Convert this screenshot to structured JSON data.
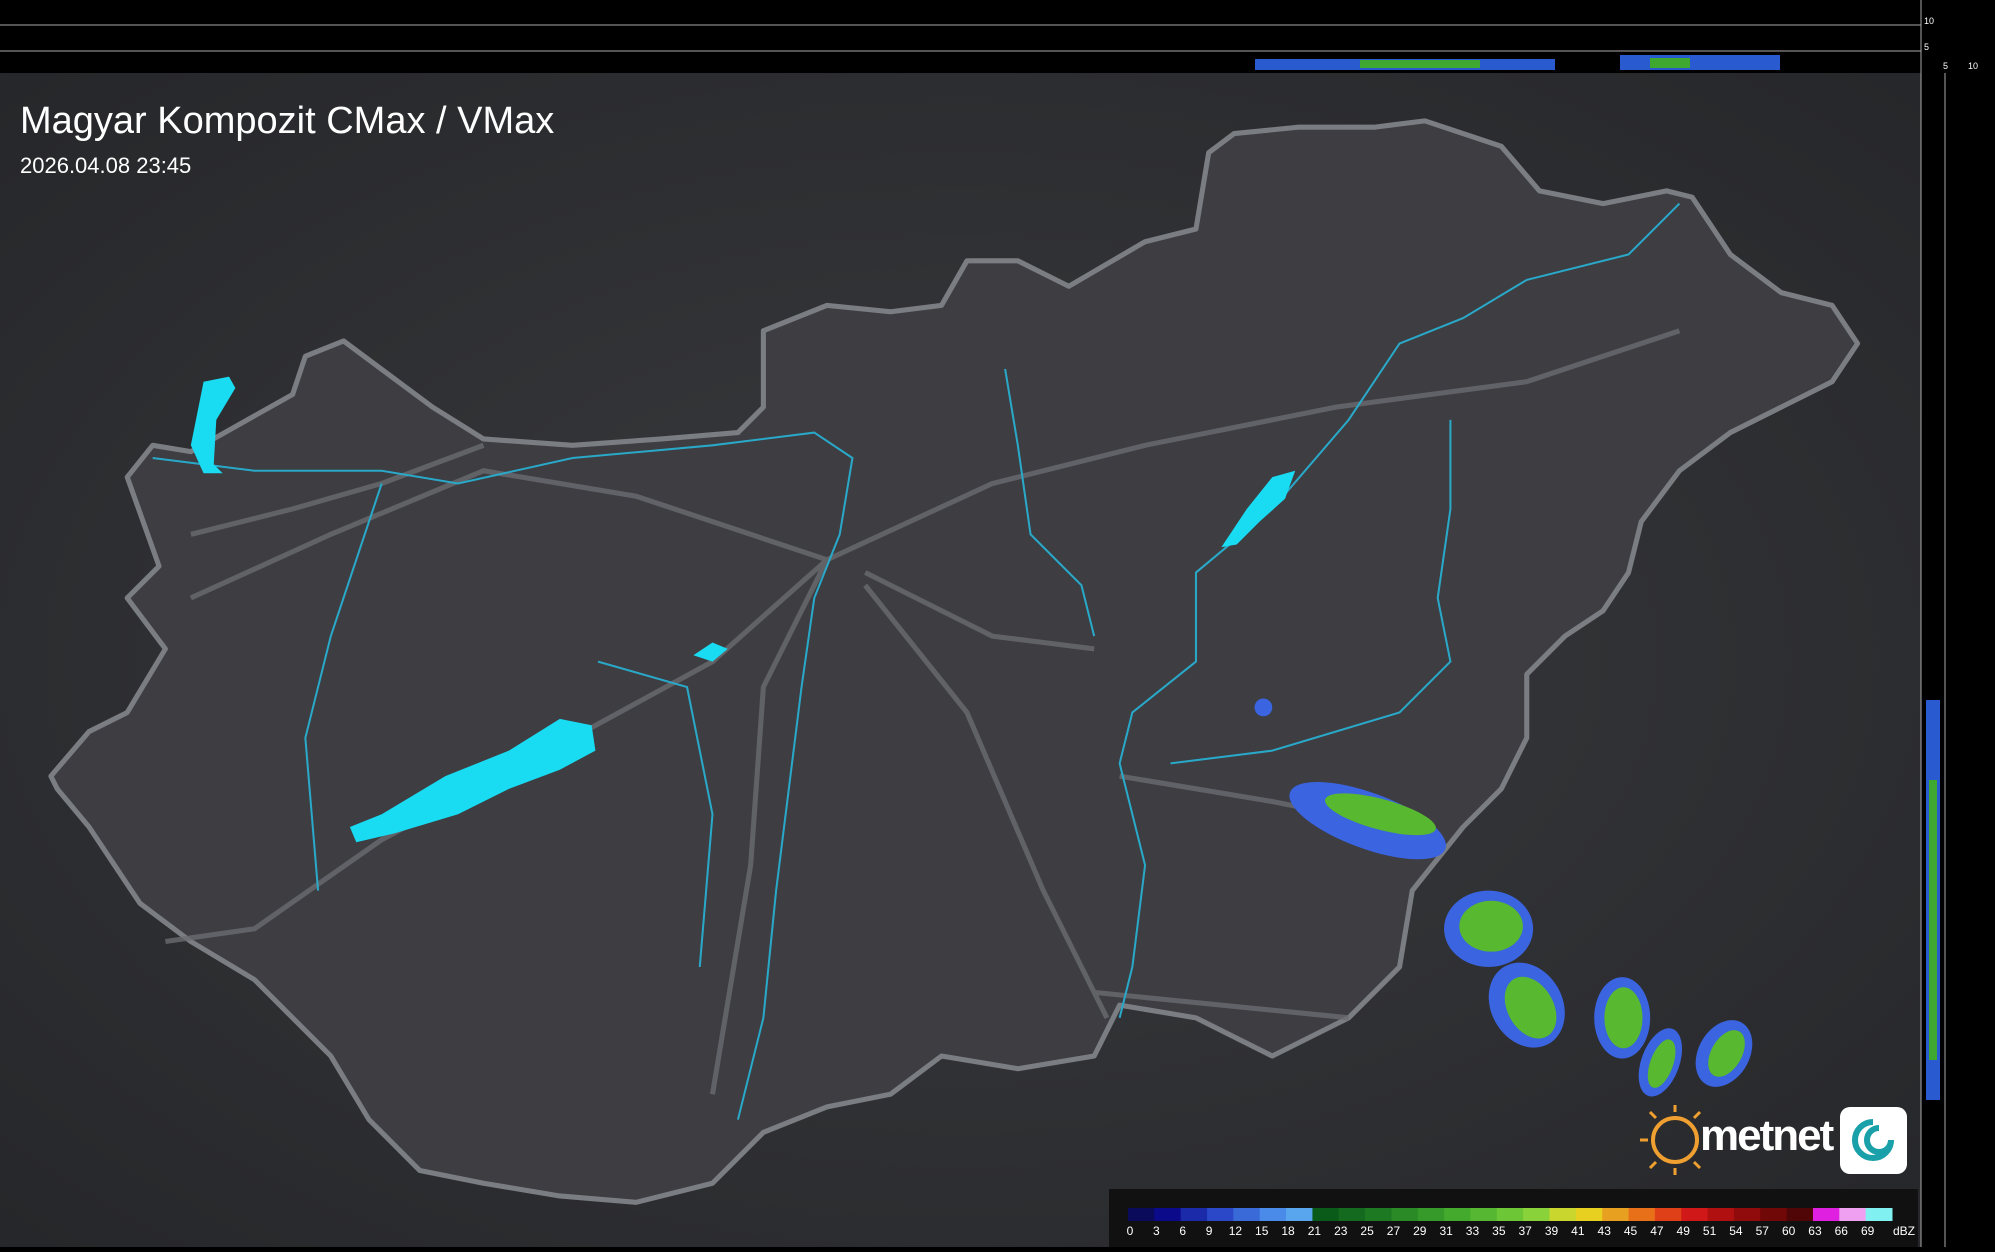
{
  "header": {
    "title": "Magyar Kompozit CMax / VMax",
    "timestamp": "2026.04.08 23:45"
  },
  "top_panel": {
    "ticks": [
      "10",
      "5"
    ]
  },
  "side_panel": {
    "ticks": [
      "5",
      "10"
    ]
  },
  "logo": {
    "text": "metnet"
  },
  "legend": {
    "unit": "dBZ",
    "stops": [
      "0",
      "3",
      "6",
      "9",
      "12",
      "15",
      "18",
      "21",
      "23",
      "25",
      "27",
      "29",
      "31",
      "33",
      "35",
      "37",
      "39",
      "41",
      "43",
      "45",
      "47",
      "49",
      "51",
      "54",
      "57",
      "60",
      "63",
      "66",
      "69"
    ],
    "colors": [
      "#0b0b5c",
      "#0a0a8a",
      "#1a2aa8",
      "#2a48c8",
      "#3a6ad8",
      "#4a8ae8",
      "#5aa6ee",
      "#0a5a1a",
      "#146a1e",
      "#1e7a22",
      "#2a8a26",
      "#369a2a",
      "#44aa2e",
      "#56b832",
      "#6cc636",
      "#8ad23a",
      "#c8d62e",
      "#e8d020",
      "#e8a020",
      "#e87018",
      "#e04018",
      "#d01818",
      "#b01010",
      "#900c0c",
      "#700808",
      "#500606",
      "#e020e0",
      "#f0a0f0",
      "#80f0f0"
    ]
  }
}
